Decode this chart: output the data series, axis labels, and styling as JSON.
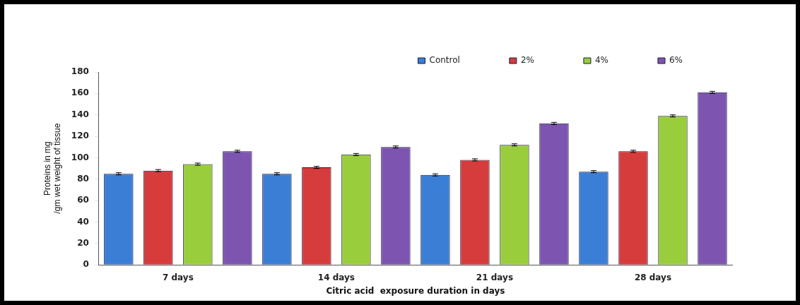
{
  "chart_data": {
    "type": "bar",
    "xlabel": "Citric acid  exposure duration in days",
    "ylabel": [
      "Proteins in mg",
      "/gm wet weight of tissue"
    ],
    "categories": [
      "7 days",
      "14 days",
      "21 days",
      "28 days"
    ],
    "series": [
      {
        "name": "Control",
        "color": "#3a7fd5",
        "values": [
          85,
          85,
          84,
          87
        ],
        "errors": [
          1,
          1,
          1,
          1
        ]
      },
      {
        "name": "2%",
        "color": "#d63c3c",
        "values": [
          88,
          91,
          98,
          106
        ],
        "errors": [
          1,
          1,
          1,
          1
        ]
      },
      {
        "name": "4%",
        "color": "#9acd3c",
        "values": [
          94,
          103,
          112,
          139
        ],
        "errors": [
          1,
          1,
          1,
          1
        ]
      },
      {
        "name": "6%",
        "color": "#7d55b0",
        "values": [
          106,
          110,
          132,
          161
        ],
        "errors": [
          1,
          1,
          1,
          1
        ]
      }
    ],
    "ylim": [
      0,
      180
    ],
    "yticks": [
      0,
      20,
      40,
      60,
      80,
      100,
      120,
      140,
      160,
      180
    ],
    "grid": false,
    "legend": "top right"
  }
}
